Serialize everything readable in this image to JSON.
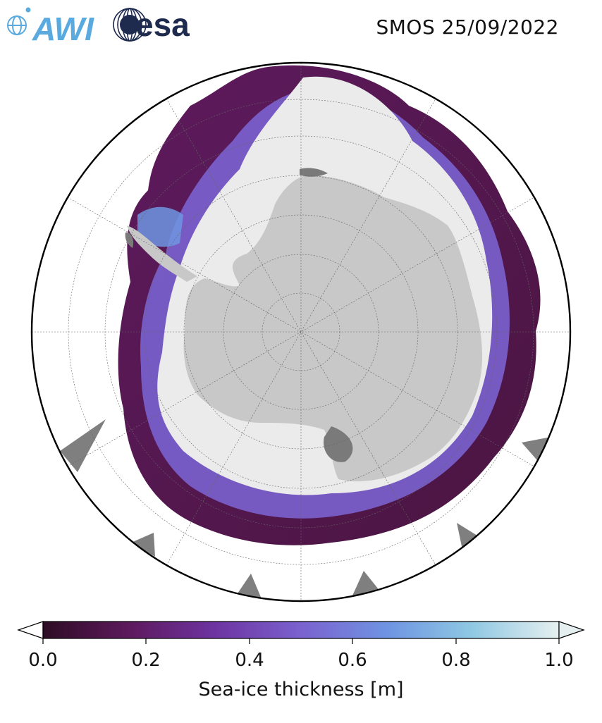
{
  "header": {
    "title": "SMOS 25/09/2022",
    "logo_awi_text": "AWI",
    "logo_esa_text": "esa"
  },
  "colors": {
    "land": "#c8c8c8",
    "ice_shelf": "#7a7a7a",
    "thick_ice": "#ebebeb",
    "thin_ice": "#4a1540",
    "mid_ice": "#7b55c7",
    "accent_blue": "#6ba6e6",
    "awi_blue": "#5aaadf",
    "esa_navy": "#1e2b4f"
  },
  "map": {
    "projection": "south-polar-stereographic",
    "graticule": "on"
  },
  "colorbar": {
    "label": "Sea-ice thickness [m]",
    "ticks": [
      "0.0",
      "0.2",
      "0.4",
      "0.6",
      "0.8",
      "1.0"
    ],
    "min": 0.0,
    "max": 1.0,
    "extend": "both",
    "colormap": [
      "#2e0c24",
      "#5e1a5e",
      "#6d33a0",
      "#7a62cf",
      "#6f95e2",
      "#8fc8e3",
      "#e6efef"
    ]
  }
}
